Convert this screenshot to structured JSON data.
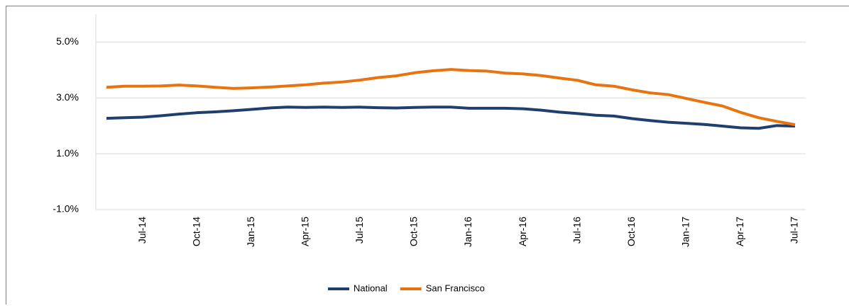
{
  "chart_data": {
    "type": "line",
    "categories": [
      null,
      null,
      "Jul-14",
      null,
      null,
      "Oct-14",
      null,
      null,
      "Jan-15",
      null,
      null,
      "Apr-15",
      null,
      null,
      "Jul-15",
      null,
      null,
      "Oct-15",
      null,
      null,
      "Jan-16",
      null,
      null,
      "Apr-16",
      null,
      null,
      "Jul-16",
      null,
      null,
      "Oct-16",
      null,
      null,
      "Jan-17",
      null,
      null,
      "Apr-17",
      null,
      null,
      "Jul-17"
    ],
    "series": [
      {
        "name": "National",
        "color": "#1f3f6e",
        "values": [
          2.27,
          2.29,
          2.31,
          2.36,
          2.42,
          2.47,
          2.5,
          2.54,
          2.59,
          2.64,
          2.67,
          2.66,
          2.67,
          2.66,
          2.67,
          2.65,
          2.64,
          2.66,
          2.67,
          2.67,
          2.63,
          2.63,
          2.63,
          2.61,
          2.56,
          2.49,
          2.44,
          2.38,
          2.35,
          2.26,
          2.19,
          2.13,
          2.09,
          2.05,
          1.99,
          1.93,
          1.91,
          2.01,
          1.99
        ]
      },
      {
        "name": "San Francisco",
        "color": "#e8730f",
        "values": [
          3.38,
          3.42,
          3.42,
          3.43,
          3.46,
          3.43,
          3.38,
          3.34,
          3.36,
          3.39,
          3.43,
          3.47,
          3.53,
          3.57,
          3.64,
          3.73,
          3.79,
          3.9,
          3.97,
          4.02,
          3.98,
          3.96,
          3.89,
          3.86,
          3.8,
          3.71,
          3.63,
          3.47,
          3.42,
          3.29,
          3.18,
          3.12,
          2.98,
          2.84,
          2.71,
          2.48,
          2.29,
          2.16,
          2.04
        ]
      }
    ],
    "ylim": [
      -1,
      6
    ],
    "yticks": [
      {
        "value": -1,
        "label": "-1.0%"
      },
      {
        "value": 1,
        "label": "1.0%"
      },
      {
        "value": 3,
        "label": "3.0%"
      },
      {
        "value": 5,
        "label": "5.0%"
      }
    ],
    "grid": true,
    "legend": "bottom"
  }
}
